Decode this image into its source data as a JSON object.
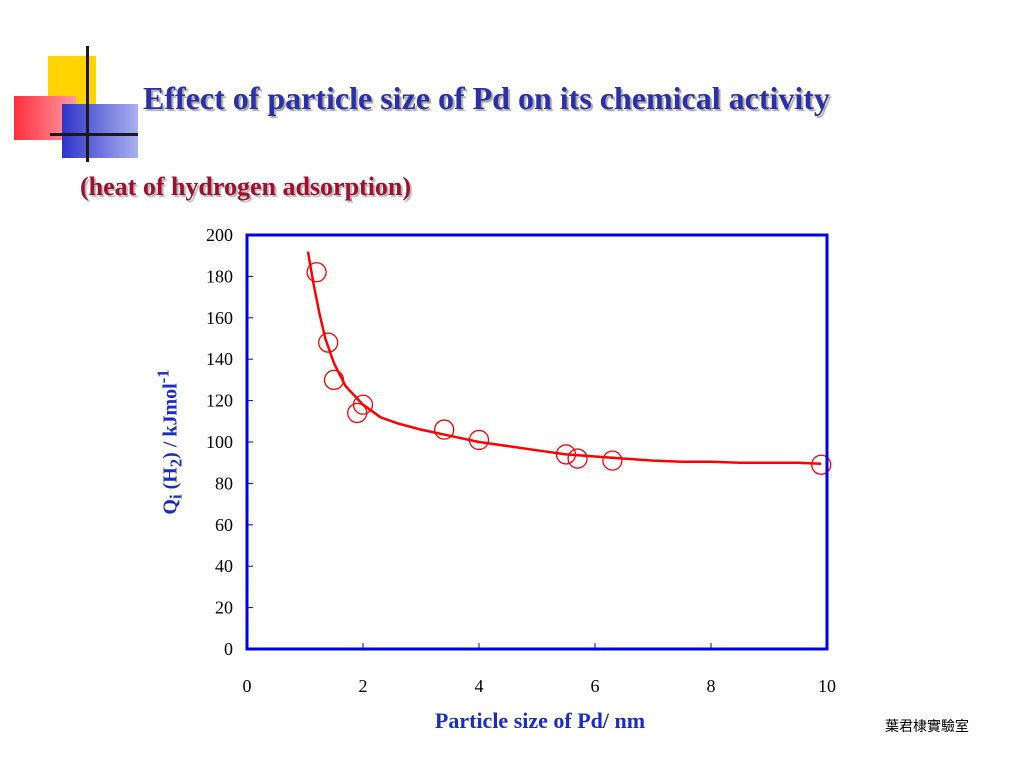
{
  "title": "Effect of particle size of Pd on its chemical activity",
  "subtitle": "(heat of hydrogen adsorption)",
  "footer": "葉君棣實驗室",
  "chart_data": {
    "type": "scatter",
    "xlabel": "Particle size of Pd/ nm",
    "ylabel": {
      "text": "Q",
      "sub_i": "i",
      "text2": " (H",
      "sub_2": "2",
      "text3": ") / kJmol",
      "sup": "-1"
    },
    "xlim": [
      0,
      10
    ],
    "ylim": [
      0,
      200
    ],
    "xticks": [
      0,
      2,
      4,
      6,
      8,
      10
    ],
    "yticks": [
      0,
      20,
      40,
      60,
      80,
      100,
      120,
      140,
      160,
      180,
      200
    ],
    "grid": false,
    "series": [
      {
        "marker": "open-circle",
        "color": "#ff0000",
        "points": [
          [
            1.2,
            182
          ],
          [
            1.4,
            148
          ],
          [
            1.5,
            130
          ],
          [
            1.9,
            114
          ],
          [
            2.0,
            118
          ],
          [
            3.4,
            106
          ],
          [
            4.0,
            101
          ],
          [
            5.5,
            94
          ],
          [
            5.7,
            92
          ],
          [
            6.3,
            91
          ],
          [
            9.9,
            89
          ]
        ]
      },
      {
        "style": "line",
        "color": "#ff0000",
        "points": [
          [
            1.05,
            192
          ],
          [
            1.15,
            176
          ],
          [
            1.25,
            162
          ],
          [
            1.35,
            150
          ],
          [
            1.5,
            138
          ],
          [
            1.7,
            127
          ],
          [
            2.0,
            118
          ],
          [
            2.3,
            112
          ],
          [
            2.6,
            109
          ],
          [
            3.0,
            106
          ],
          [
            3.5,
            103
          ],
          [
            4.0,
            100
          ],
          [
            4.5,
            98
          ],
          [
            5.0,
            96
          ],
          [
            5.5,
            94
          ],
          [
            6.0,
            93
          ],
          [
            6.5,
            92
          ],
          [
            7.0,
            91
          ],
          [
            7.5,
            90.5
          ],
          [
            8.0,
            90.5
          ],
          [
            8.5,
            90
          ],
          [
            9.0,
            90
          ],
          [
            9.5,
            90
          ],
          [
            9.9,
            89.5
          ]
        ]
      }
    ]
  }
}
